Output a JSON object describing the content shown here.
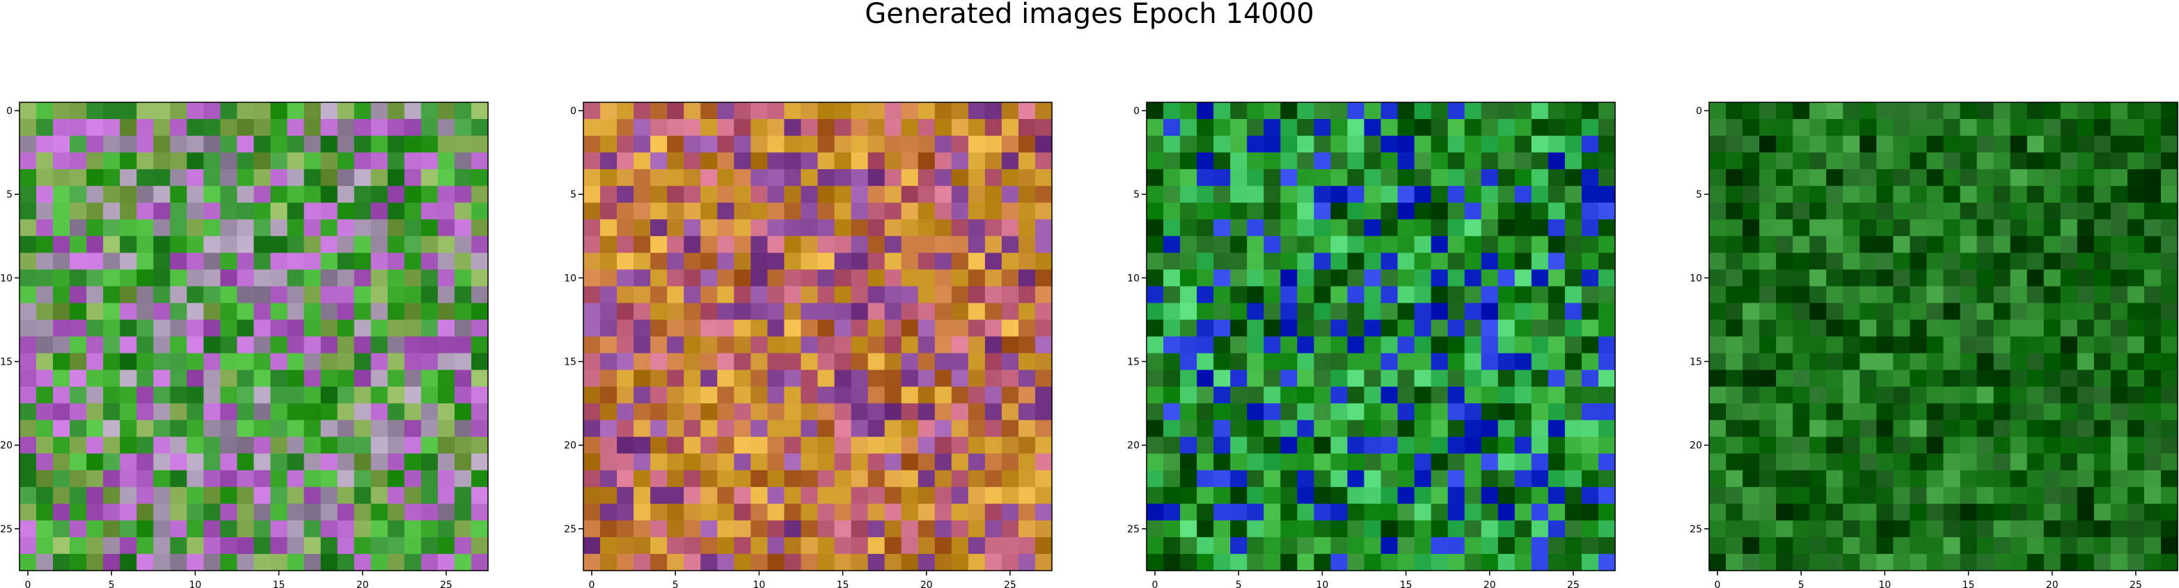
{
  "figure": {
    "title": "Generated images Epoch 14000"
  },
  "chart_data": {
    "type": "heatmap",
    "title": "Generated images Epoch 14000",
    "panel_count": 4,
    "image_shape": [
      28,
      28,
      3
    ],
    "x_ticks": [
      0,
      5,
      10,
      15,
      20,
      25
    ],
    "y_ticks": [
      0,
      5,
      10,
      15,
      20,
      25
    ],
    "xlim": [
      -0.5,
      27.5
    ],
    "ylim": [
      27.5,
      -0.5
    ],
    "panels": [
      {
        "index": 1,
        "dominant_colors": [
          "#7da44a",
          "#a08fa8",
          "#39a82a",
          "#b05fc4",
          "#2e8b2e"
        ]
      },
      {
        "index": 2,
        "dominant_colors": [
          "#c58a2a",
          "#b86a30",
          "#8a4a9a",
          "#d4a030",
          "#c0607a"
        ]
      },
      {
        "index": 3,
        "dominant_colors": [
          "#1f7a1f",
          "#2aa02a",
          "#1a2fd0",
          "#3cc060",
          "#0f5a0f"
        ]
      },
      {
        "index": 4,
        "dominant_colors": [
          "#176b17",
          "#0f5a12",
          "#2a8a2a",
          "#1d7a1d",
          "#0a4a0a"
        ]
      }
    ]
  }
}
